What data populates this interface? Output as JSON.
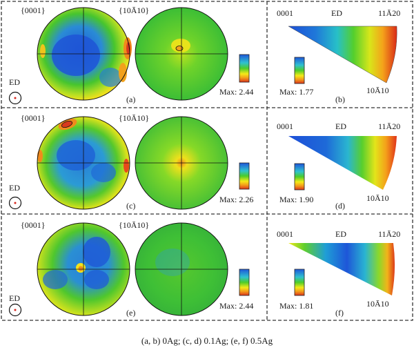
{
  "caption": "(a, b) 0Ag; (c, d) 0.1Ag; (e, f) 0.5Ag",
  "rows": [
    {
      "pf_label_basal": "{0001}",
      "pf_label_prism": "{10Ā1\u00010}",
      "ed_label": "ED",
      "pf_max": "Max: 2.44",
      "pf_tag": "(a)",
      "ipf_max": "Max: 1.77",
      "ipf_tag": "(b)",
      "ipf_corner_0001": "0001",
      "ipf_corner_ed": "ED",
      "ipf_corner_1120": "11Ā2\u00010",
      "ipf_corner_1010": "10Ā1\u00010"
    },
    {
      "pf_label_basal": "{0001}",
      "pf_label_prism": "{10Ā1\u00010}",
      "ed_label": "ED",
      "pf_max": "Max: 2.26",
      "pf_tag": "(c)",
      "ipf_max": "Max: 1.90",
      "ipf_tag": "(d)",
      "ipf_corner_0001": "0001",
      "ipf_corner_ed": "ED",
      "ipf_corner_1120": "11Ā2\u00010",
      "ipf_corner_1010": "10Ā1\u00010"
    },
    {
      "pf_label_basal": "{0001}",
      "pf_label_prism": "{10Ā1\u00010}",
      "ed_label": "ED",
      "pf_max": "Max: 2.44",
      "pf_tag": "(e)",
      "ipf_max": "Max: 1.81",
      "ipf_tag": "(f)",
      "ipf_corner_0001": "0001",
      "ipf_corner_ed": "ED",
      "ipf_corner_1120": "11Ā2\u00010",
      "ipf_corner_1010": "10Ā1\u00010"
    }
  ],
  "colors": {
    "high": "#d73a1e",
    "mid_high": "#f2a11c",
    "mid": "#f5e418",
    "mid_low": "#49c52c",
    "low": "#1e6ad8",
    "frame": "#333333"
  }
}
